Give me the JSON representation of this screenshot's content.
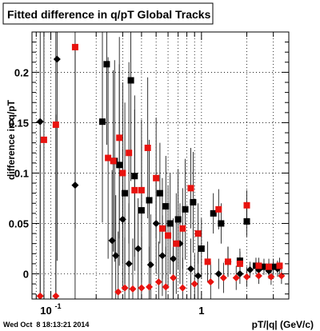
{
  "chart_data": {
    "type": "scatter",
    "title": "Fitted difference in q/pT  Global Tracks",
    "xlabel": "pT/|q| (GeV/c)",
    "ylabel": "difference in q/pT",
    "x_scale": "log",
    "xlim": [
      0.075,
      3.8
    ],
    "ylim": [
      -0.025,
      0.24
    ],
    "grid": true,
    "x_ticks": [
      {
        "value": 0.1,
        "label": "10",
        "exponent": "-1"
      },
      {
        "value": 1,
        "label": "1",
        "exponent": ""
      }
    ],
    "y_ticks": [
      {
        "value": 0,
        "label": "0"
      },
      {
        "value": 0.05,
        "label": "0.05"
      },
      {
        "value": 0.1,
        "label": "0.1"
      },
      {
        "value": 0.15,
        "label": "0.15"
      },
      {
        "value": 0.2,
        "label": "0.2"
      }
    ],
    "series": [
      {
        "marker": "square",
        "color": "#000000",
        "points": [
          {
            "x": 0.235,
            "y": 0.208,
            "yerr": 0.08
          },
          {
            "x": 0.22,
            "y": 0.151,
            "yerr": 0.1
          },
          {
            "x": 0.265,
            "y": 0.112,
            "yerr": 0.1
          },
          {
            "x": 0.285,
            "y": 0.108,
            "yerr": 0.1
          },
          {
            "x": 0.31,
            "y": 0.08,
            "yerr": 0.09
          },
          {
            "x": 0.34,
            "y": 0.192,
            "yerr": 0.1
          },
          {
            "x": 0.36,
            "y": 0.097,
            "yerr": 0.08
          },
          {
            "x": 0.4,
            "y": 0.063,
            "yerr": 0.07
          },
          {
            "x": 0.45,
            "y": 0.073,
            "yerr": 0.06
          },
          {
            "x": 0.53,
            "y": 0.08,
            "yerr": 0.05
          },
          {
            "x": 0.58,
            "y": 0.067,
            "yerr": 0.05
          },
          {
            "x": 0.62,
            "y": 0.05,
            "yerr": 0.05
          },
          {
            "x": 0.7,
            "y": 0.054,
            "yerr": 0.05
          },
          {
            "x": 0.78,
            "y": 0.064,
            "yerr": 0.05
          },
          {
            "x": 0.88,
            "y": 0.071,
            "yerr": 0.05
          },
          {
            "x": 1.0,
            "y": 0.025,
            "yerr": 0.03
          },
          {
            "x": 1.2,
            "y": 0.06,
            "yerr": 0.02
          },
          {
            "x": 1.35,
            "y": 0.05,
            "yerr": 0.02
          },
          {
            "x": 1.8,
            "y": 0.013,
            "yerr": 0.012
          },
          {
            "x": 2.0,
            "y": 0.052,
            "yerr": 0.015
          },
          {
            "x": 2.3,
            "y": 0.008,
            "yerr": 0.008
          },
          {
            "x": 2.6,
            "y": 0.007,
            "yerr": 0.008
          },
          {
            "x": 3.0,
            "y": 0.007,
            "yerr": 0.008
          }
        ]
      },
      {
        "marker": "diamond",
        "color": "#000000",
        "points": [
          {
            "x": 0.085,
            "y": 0.151,
            "yerr": 0.18
          },
          {
            "x": 0.11,
            "y": 0.213,
            "yerr": 0.2
          },
          {
            "x": 0.145,
            "y": 0.088,
            "yerr": 0.14
          },
          {
            "x": 0.255,
            "y": 0.033,
            "yerr": 0.07
          },
          {
            "x": 0.27,
            "y": 0.018,
            "yerr": 0.06
          },
          {
            "x": 0.3,
            "y": 0.054,
            "yerr": 0.07
          },
          {
            "x": 0.33,
            "y": 0.01,
            "yerr": 0.06
          },
          {
            "x": 0.38,
            "y": 0.025,
            "yerr": 0.05
          },
          {
            "x": 0.46,
            "y": 0.009,
            "yerr": 0.05
          },
          {
            "x": 0.5,
            "y": 0.05,
            "yerr": 0.05
          },
          {
            "x": 0.55,
            "y": 0.018,
            "yerr": 0.04
          },
          {
            "x": 0.65,
            "y": 0.015,
            "yerr": 0.04
          },
          {
            "x": 0.72,
            "y": 0.03,
            "yerr": 0.04
          },
          {
            "x": 0.85,
            "y": 0.005,
            "yerr": 0.03
          },
          {
            "x": 0.95,
            "y": -0.002,
            "yerr": 0.03
          },
          {
            "x": 1.3,
            "y": 0.0,
            "yerr": 0.015
          },
          {
            "x": 1.5,
            "y": 0.012,
            "yerr": 0.015
          },
          {
            "x": 1.8,
            "y": 0.0,
            "yerr": 0.01
          },
          {
            "x": 2.1,
            "y": 0.004,
            "yerr": 0.008
          },
          {
            "x": 2.4,
            "y": 0.004,
            "yerr": 0.008
          },
          {
            "x": 2.8,
            "y": 0.003,
            "yerr": 0.008
          },
          {
            "x": 3.2,
            "y": 0.005,
            "yerr": 0.008
          }
        ]
      },
      {
        "marker": "square",
        "color": "#e8130f",
        "points": [
          {
            "x": 0.09,
            "y": 0.133,
            "yerr": 0.18
          },
          {
            "x": 0.108,
            "y": 0.148,
            "yerr": 0.2
          },
          {
            "x": 0.145,
            "y": 0.225,
            "yerr": 0.18
          },
          {
            "x": 0.24,
            "y": 0.115,
            "yerr": 0.1
          },
          {
            "x": 0.26,
            "y": 0.112,
            "yerr": 0.09
          },
          {
            "x": 0.285,
            "y": 0.135,
            "yerr": 0.1
          },
          {
            "x": 0.3,
            "y": 0.1,
            "yerr": 0.09
          },
          {
            "x": 0.33,
            "y": 0.12,
            "yerr": 0.09
          },
          {
            "x": 0.36,
            "y": 0.083,
            "yerr": 0.08
          },
          {
            "x": 0.4,
            "y": 0.083,
            "yerr": 0.07
          },
          {
            "x": 0.44,
            "y": 0.125,
            "yerr": 0.07
          },
          {
            "x": 0.5,
            "y": 0.095,
            "yerr": 0.06
          },
          {
            "x": 0.55,
            "y": 0.045,
            "yerr": 0.05
          },
          {
            "x": 0.6,
            "y": 0.038,
            "yerr": 0.05
          },
          {
            "x": 0.68,
            "y": 0.03,
            "yerr": 0.05
          },
          {
            "x": 0.75,
            "y": 0.045,
            "yerr": 0.04
          },
          {
            "x": 0.85,
            "y": 0.085,
            "yerr": 0.04
          },
          {
            "x": 0.95,
            "y": 0.04,
            "yerr": 0.03
          },
          {
            "x": 1.1,
            "y": 0.012,
            "yerr": 0.02
          },
          {
            "x": 1.3,
            "y": 0.064,
            "yerr": 0.02
          },
          {
            "x": 1.5,
            "y": 0.012,
            "yerr": 0.015
          },
          {
            "x": 1.8,
            "y": 0.01,
            "yerr": 0.012
          },
          {
            "x": 2.0,
            "y": 0.068,
            "yerr": 0.015
          },
          {
            "x": 2.4,
            "y": 0.008,
            "yerr": 0.008
          },
          {
            "x": 2.8,
            "y": 0.007,
            "yerr": 0.008
          },
          {
            "x": 3.3,
            "y": 0.008,
            "yerr": 0.008
          }
        ]
      },
      {
        "marker": "diamond",
        "color": "#e8130f",
        "points": [
          {
            "x": 0.085,
            "y": -0.022,
            "yerr": 0.15
          },
          {
            "x": 0.108,
            "y": -0.022,
            "yerr": 0.18
          },
          {
            "x": 0.28,
            "y": -0.018,
            "yerr": 0.06
          },
          {
            "x": 0.31,
            "y": -0.014,
            "yerr": 0.05
          },
          {
            "x": 0.35,
            "y": -0.015,
            "yerr": 0.05
          },
          {
            "x": 0.4,
            "y": -0.014,
            "yerr": 0.05
          },
          {
            "x": 0.45,
            "y": -0.013,
            "yerr": 0.04
          },
          {
            "x": 0.52,
            "y": -0.008,
            "yerr": 0.04
          },
          {
            "x": 0.58,
            "y": -0.013,
            "yerr": 0.04
          },
          {
            "x": 0.65,
            "y": -0.004,
            "yerr": 0.03
          },
          {
            "x": 0.75,
            "y": -0.014,
            "yerr": 0.03
          },
          {
            "x": 0.9,
            "y": -0.01,
            "yerr": 0.03
          },
          {
            "x": 1.15,
            "y": -0.008,
            "yerr": 0.02
          },
          {
            "x": 1.4,
            "y": -0.004,
            "yerr": 0.015
          },
          {
            "x": 1.7,
            "y": -0.004,
            "yerr": 0.012
          },
          {
            "x": 2.0,
            "y": -0.003,
            "yerr": 0.01
          },
          {
            "x": 2.4,
            "y": -0.002,
            "yerr": 0.008
          },
          {
            "x": 2.9,
            "y": -0.003,
            "yerr": 0.008
          },
          {
            "x": 3.4,
            "y": -0.002,
            "yerr": 0.008
          }
        ]
      }
    ]
  },
  "footer": {
    "timestamp": "Wed Oct  8 18:13:21 2014"
  }
}
